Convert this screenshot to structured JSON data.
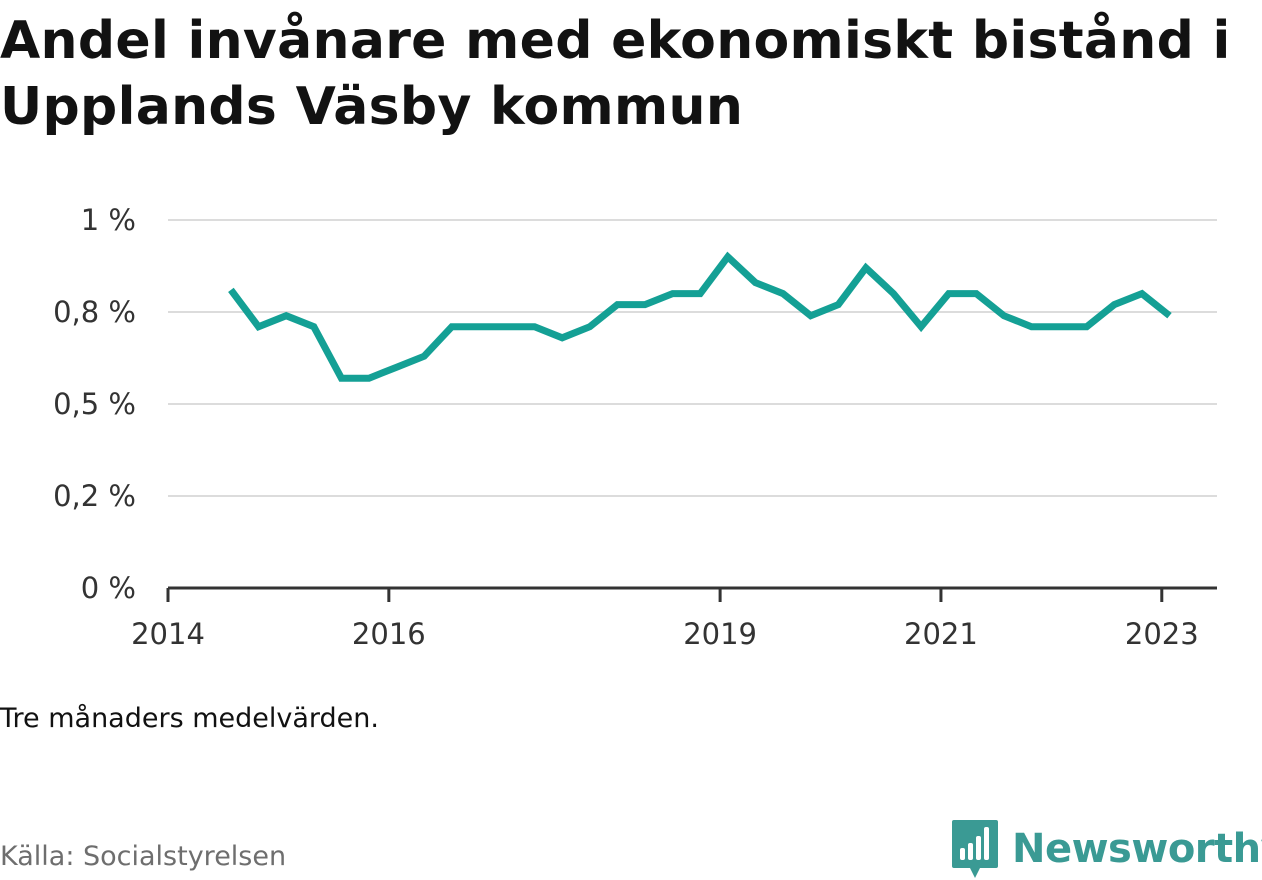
{
  "colors": {
    "line": "#14a095",
    "grid": "#dcdcdc",
    "axis": "#333333",
    "brand": "#3a9a94"
  },
  "title": "Andel invånare med ekonomiskt bistånd i Upplands Väsby kommun",
  "note": "Tre månaders medelvärden.",
  "source": "Källa: Socialstyrelsen",
  "brand": {
    "name": "Newsworthy",
    "icon": "newsworthy-logo-icon"
  },
  "chart_data": {
    "type": "line",
    "title": "Andel invånare med ekonomiskt bistånd i Upplands Väsby kommun",
    "xlabel": "",
    "ylabel": "",
    "x_ticks": [
      {
        "label": "2014",
        "value": 2014.0
      },
      {
        "label": "2016",
        "value": 2016.0
      },
      {
        "label": "2019",
        "value": 2019.0
      },
      {
        "label": "2021",
        "value": 2021.0
      },
      {
        "label": "2023",
        "value": 2023.0
      }
    ],
    "y_ticks": [
      {
        "label": "0 %",
        "value": 0
      },
      {
        "label": "0,2 %",
        "value": 0.25
      },
      {
        "label": "0,5 %",
        "value": 0.5
      },
      {
        "label": "0,8 %",
        "value": 0.75
      },
      {
        "label": "1 %",
        "value": 1.0
      }
    ],
    "xlim": [
      2014.0,
      2023.5
    ],
    "ylim": [
      0,
      1.0
    ],
    "grid": true,
    "series": [
      {
        "x": [
          2014.57,
          2014.82,
          2015.07,
          2015.32,
          2015.57,
          2015.82,
          2016.07,
          2016.32,
          2016.57,
          2016.82,
          2017.07,
          2017.32,
          2017.57,
          2017.82,
          2018.07,
          2018.32,
          2018.57,
          2018.82,
          2019.07,
          2019.32,
          2019.57,
          2019.82,
          2020.07,
          2020.32,
          2020.57,
          2020.82,
          2021.07,
          2021.32,
          2021.57,
          2021.82,
          2022.07,
          2022.32,
          2022.57,
          2022.82,
          2023.07
        ],
        "values": [
          0.81,
          0.71,
          0.74,
          0.71,
          0.57,
          0.57,
          0.6,
          0.63,
          0.71,
          0.71,
          0.71,
          0.71,
          0.68,
          0.71,
          0.77,
          0.77,
          0.8,
          0.8,
          0.9,
          0.83,
          0.8,
          0.74,
          0.77,
          0.87,
          0.8,
          0.71,
          0.8,
          0.8,
          0.74,
          0.71,
          0.71,
          0.71,
          0.77,
          0.8,
          0.74
        ]
      }
    ]
  }
}
